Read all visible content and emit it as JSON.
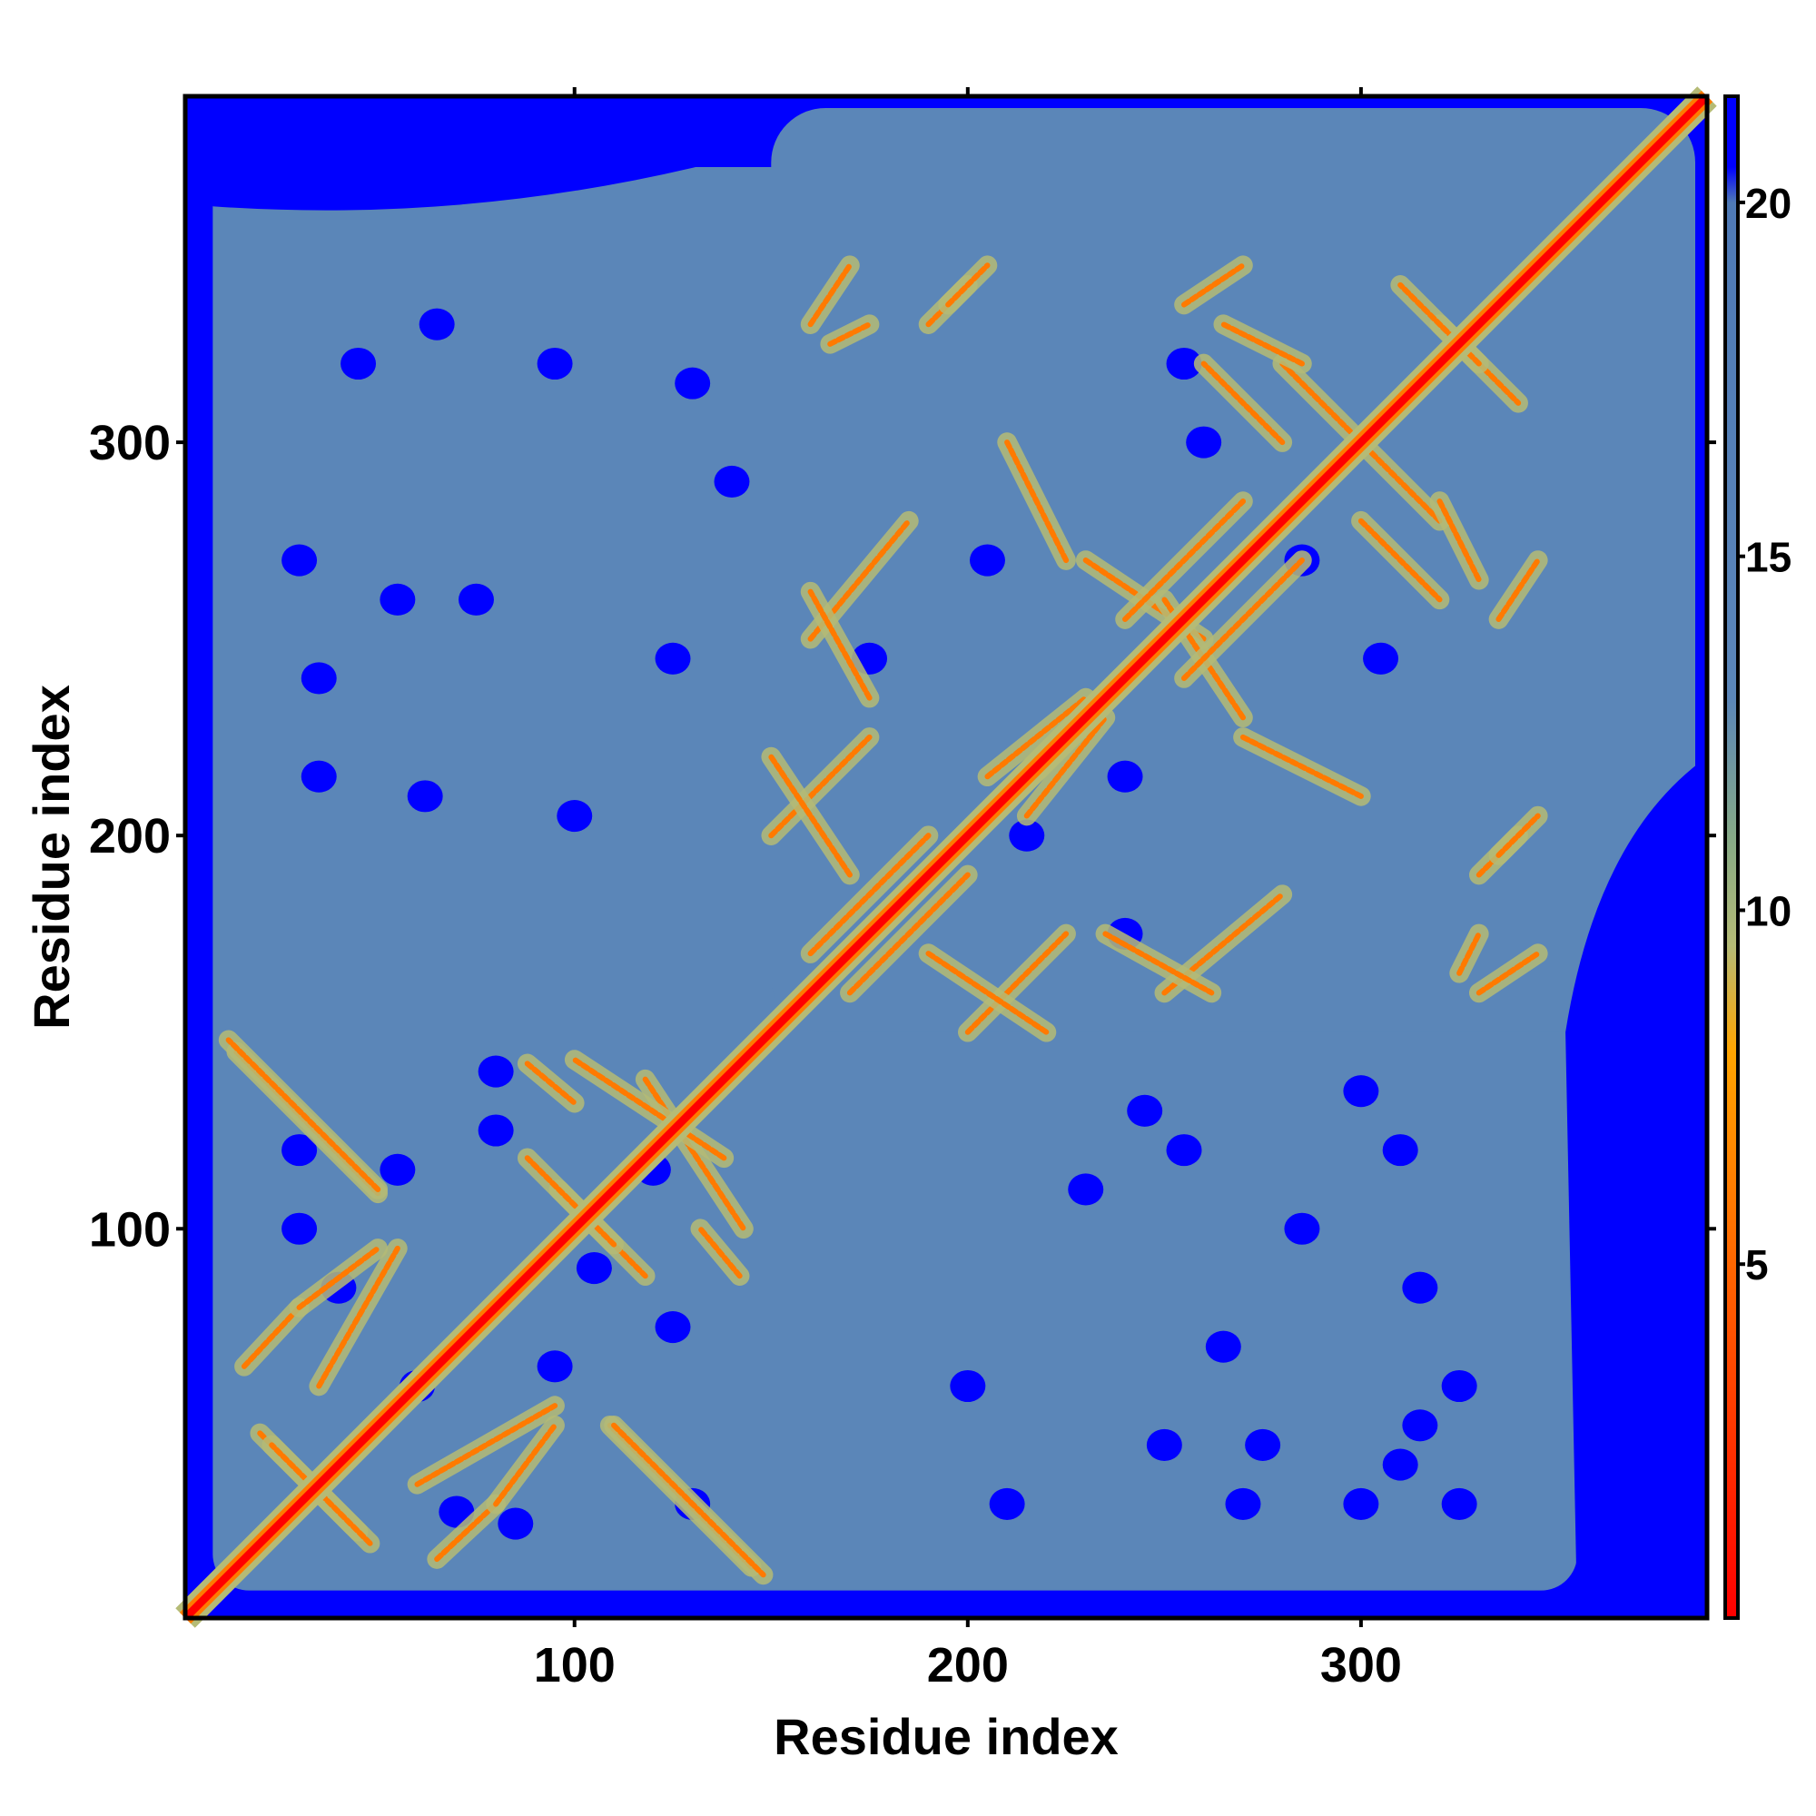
{
  "chart_data": {
    "type": "heatmap",
    "title": "",
    "xlabel": "Residue index",
    "ylabel": "Residue index",
    "xlim": [
      1,
      388
    ],
    "ylim": [
      1,
      388
    ],
    "x_ticks": [
      100,
      200,
      300
    ],
    "y_ticks": [
      100,
      200,
      300
    ],
    "colorbar": {
      "range": [
        0,
        21.5
      ],
      "ticks": [
        5,
        10,
        15,
        20
      ],
      "stops": [
        {
          "value": 0,
          "color": "#ff0000"
        },
        {
          "value": 5,
          "color": "#ff6600"
        },
        {
          "value": 8,
          "color": "#ffa500"
        },
        {
          "value": 9.5,
          "color": "#b5bb76"
        },
        {
          "value": 11,
          "color": "#87aa86"
        },
        {
          "value": 13,
          "color": "#5b86b8"
        },
        {
          "value": 20,
          "color": "#4f7ab6"
        },
        {
          "value": 20.5,
          "color": "#0000ff"
        }
      ]
    },
    "matrix_description": "symmetric residue contact distance map; red diagonal, blue background for distances above 20",
    "diagonal_color": "#ff0000",
    "background_color": "#0000ff",
    "mid_color": "#5b86b8",
    "contact_lines": [
      {
        "from": [
          14,
          145
        ],
        "to": [
          50,
          109
        ]
      },
      {
        "from": [
          16,
          65
        ],
        "to": [
          30,
          80
        ]
      },
      {
        "from": [
          30,
          80
        ],
        "to": [
          50,
          95
        ]
      },
      {
        "from": [
          20,
          48
        ],
        "to": [
          45,
          23
        ]
      },
      {
        "from": [
          60,
          35
        ],
        "to": [
          95,
          55
        ]
      },
      {
        "from": [
          88,
          142
        ],
        "to": [
          100,
          132
        ]
      },
      {
        "from": [
          96,
          110
        ],
        "to": [
          118,
          88
        ]
      },
      {
        "from": [
          118,
          138
        ],
        "to": [
          143,
          100
        ]
      },
      {
        "from": [
          110,
          50
        ],
        "to": [
          148,
          12
        ]
      },
      {
        "from": [
          160,
          250
        ],
        "to": [
          185,
          280
        ]
      },
      {
        "from": [
          150,
          200
        ],
        "to": [
          175,
          225
        ]
      },
      {
        "from": [
          170,
          160
        ],
        "to": [
          200,
          190
        ]
      },
      {
        "from": [
          190,
          170
        ],
        "to": [
          220,
          150
        ]
      },
      {
        "from": [
          215,
          205
        ],
        "to": [
          235,
          230
        ]
      },
      {
        "from": [
          230,
          270
        ],
        "to": [
          260,
          250
        ]
      },
      {
        "from": [
          255,
          240
        ],
        "to": [
          285,
          270
        ]
      },
      {
        "from": [
          280,
          320
        ],
        "to": [
          300,
          300
        ]
      },
      {
        "from": [
          300,
          280
        ],
        "to": [
          320,
          260
        ]
      },
      {
        "from": [
          320,
          330
        ],
        "to": [
          340,
          310
        ]
      },
      {
        "from": [
          165,
          325
        ],
        "to": [
          175,
          330
        ]
      },
      {
        "from": [
          190,
          330
        ],
        "to": [
          200,
          340
        ]
      },
      {
        "from": [
          255,
          335
        ],
        "to": [
          270,
          345
        ]
      },
      {
        "from": [
          235,
          175
        ],
        "to": [
          262,
          160
        ]
      },
      {
        "from": [
          270,
          225
        ],
        "to": [
          300,
          210
        ]
      },
      {
        "from": [
          320,
          285
        ],
        "to": [
          330,
          265
        ]
      },
      {
        "from": [
          330,
          160
        ],
        "to": [
          345,
          170
        ]
      },
      {
        "from": [
          335,
          195
        ],
        "to": [
          345,
          205
        ]
      }
    ],
    "blue_holes": [
      [
        30,
        270
      ],
      [
        55,
        260
      ],
      [
        75,
        260
      ],
      [
        35,
        240
      ],
      [
        35,
        215
      ],
      [
        62,
        210
      ],
      [
        100,
        205
      ],
      [
        65,
        330
      ],
      [
        95,
        320
      ],
      [
        130,
        315
      ],
      [
        45,
        320
      ],
      [
        140,
        290
      ],
      [
        125,
        245
      ],
      [
        175,
        245
      ],
      [
        205,
        270
      ],
      [
        215,
        200
      ],
      [
        240,
        215
      ],
      [
        255,
        320
      ],
      [
        260,
        300
      ],
      [
        285,
        270
      ],
      [
        305,
        245
      ],
      [
        240,
        175
      ],
      [
        245,
        130
      ],
      [
        275,
        45
      ],
      [
        270,
        30
      ],
      [
        250,
        45
      ],
      [
        200,
        60
      ],
      [
        210,
        30
      ],
      [
        300,
        30
      ],
      [
        315,
        85
      ],
      [
        325,
        30
      ],
      [
        310,
        120
      ],
      [
        325,
        60
      ],
      [
        70,
        28
      ],
      [
        30,
        100
      ],
      [
        30,
        120
      ],
      [
        55,
        115
      ],
      [
        80,
        140
      ],
      [
        60,
        60
      ],
      [
        40,
        85
      ],
      [
        80,
        125
      ],
      [
        85,
        25
      ],
      [
        95,
        65
      ],
      [
        105,
        90
      ],
      [
        120,
        115
      ],
      [
        130,
        30
      ],
      [
        125,
        75
      ],
      [
        230,
        110
      ],
      [
        265,
        70
      ],
      [
        310,
        40
      ],
      [
        315,
        50
      ],
      [
        255,
        120
      ],
      [
        285,
        100
      ],
      [
        300,
        135
      ]
    ]
  }
}
